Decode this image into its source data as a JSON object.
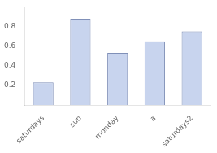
{
  "chart_data": {
    "type": "bar",
    "categories": [
      "saturdays",
      "sun",
      "monday",
      "a",
      "saturdays2"
    ],
    "values": [
      0.23,
      0.88,
      0.53,
      0.65,
      0.75
    ],
    "color": "#c8d4ee",
    "ylim": [
      0,
      1.0
    ],
    "yticks": [
      0.2,
      0.4,
      0.6,
      0.8
    ],
    "grid": false
  }
}
